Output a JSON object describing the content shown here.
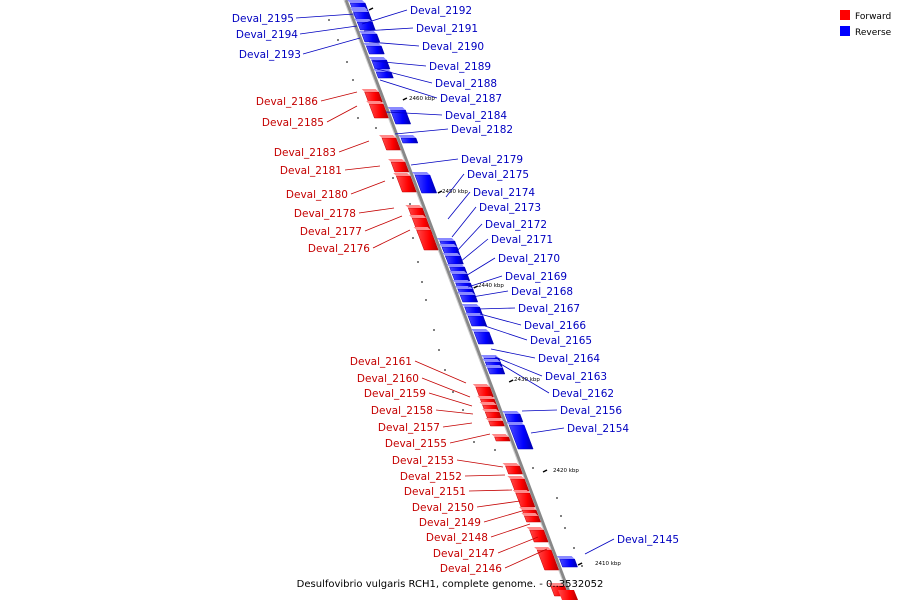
{
  "caption": "Desulfovibrio vulgaris RCH1, complete genome. - 0..3532052",
  "legend": [
    {
      "label": "Forward",
      "color": "#ff0000"
    },
    {
      "label": "Reverse",
      "color": "#0000ff"
    }
  ],
  "colors": {
    "forward": "#ff0000",
    "reverse": "#0000ff",
    "axis": "#888888"
  },
  "kbp_labels": [
    "2460 kbp",
    "2450 kbp",
    "2440 kbp",
    "2430 kbp",
    "2420 kbp",
    "2410 kbp"
  ],
  "reverse_genes": [
    "Deval_2195",
    "Deval_2194",
    "Deval_2193",
    "Deval_2192",
    "Deval_2191",
    "Deval_2190",
    "Deval_2189",
    "Deval_2188",
    "Deval_2187",
    "Deval_2184",
    "Deval_2182",
    "Deval_2179",
    "Deval_2175",
    "Deval_2174",
    "Deval_2173",
    "Deval_2172",
    "Deval_2171",
    "Deval_2170",
    "Deval_2169",
    "Deval_2168",
    "Deval_2167",
    "Deval_2166",
    "Deval_2165",
    "Deval_2164",
    "Deval_2163",
    "Deval_2162",
    "Deval_2156",
    "Deval_2154",
    "Deval_2145"
  ],
  "forward_genes": [
    "Deval_2186",
    "Deval_2185",
    "Deval_2183",
    "Deval_2181",
    "Deval_2180",
    "Deval_2178",
    "Deval_2177",
    "Deval_2176",
    "Deval_2161",
    "Deval_2160",
    "Deval_2159",
    "Deval_2158",
    "Deval_2157",
    "Deval_2155",
    "Deval_2153",
    "Deval_2152",
    "Deval_2151",
    "Deval_2150",
    "Deval_2149",
    "Deval_2148",
    "Deval_2147",
    "Deval_2146"
  ]
}
